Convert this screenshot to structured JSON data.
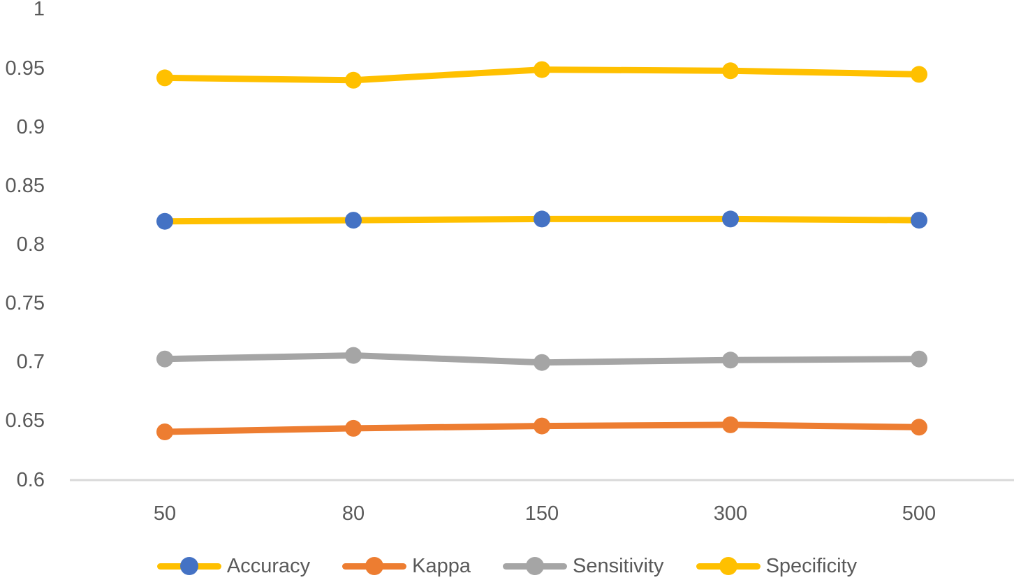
{
  "chart_data": {
    "type": "line",
    "title": "",
    "xlabel": "",
    "ylabel": "",
    "categories": [
      "50",
      "80",
      "150",
      "300",
      "500"
    ],
    "series": [
      {
        "name": "Accuracy",
        "line_color": "#FFC000",
        "marker_color": "#4472C4",
        "values": [
          0.82,
          0.821,
          0.822,
          0.822,
          0.821
        ]
      },
      {
        "name": "Kappa",
        "line_color": "#ED7D31",
        "marker_color": "#ED7D31",
        "values": [
          0.641,
          0.644,
          0.646,
          0.647,
          0.645
        ]
      },
      {
        "name": "Sensitivity",
        "line_color": "#A5A5A5",
        "marker_color": "#A5A5A5",
        "values": [
          0.703,
          0.706,
          0.7,
          0.702,
          0.703
        ]
      },
      {
        "name": "Specificity",
        "line_color": "#FFC000",
        "marker_color": "#FFC000",
        "values": [
          0.942,
          0.94,
          0.949,
          0.948,
          0.945
        ]
      }
    ],
    "ylim": [
      0.6,
      1.0
    ],
    "ytick_step": 0.05,
    "yticks": [
      "1",
      "0.95",
      "0.9",
      "0.85",
      "0.8",
      "0.75",
      "0.7",
      "0.65",
      "0.6"
    ],
    "ytick_values": [
      1,
      0.95,
      0.9,
      0.85,
      0.8,
      0.75,
      0.7,
      0.65,
      0.6
    ],
    "grid": false,
    "legend_position": "bottom",
    "axis_line_color": "#D9D9D9",
    "text_color": "#595959"
  }
}
